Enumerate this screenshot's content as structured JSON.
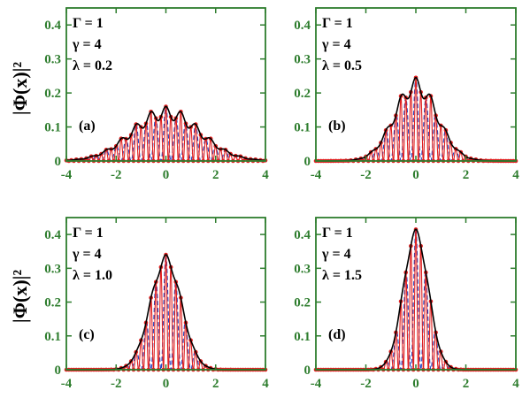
{
  "figure": {
    "ylabel": "|Φ(x)|²",
    "frame_color": "#2e7d2e",
    "colors": {
      "envelope": "#000000",
      "dashed": "#1f3fbf",
      "dots": "#e02020"
    }
  },
  "chart_data": [
    {
      "type": "line",
      "panel_label": "(a)",
      "annotations": [
        "Γ = 1",
        "γ  = 4",
        "λ  = 0.2"
      ],
      "xlim": [
        -4,
        4
      ],
      "ylim": [
        0,
        0.45
      ],
      "xticks": [
        -4,
        -2,
        0,
        2,
        4
      ],
      "yticks": [
        0,
        0.1,
        0.2,
        0.3,
        0.4
      ],
      "peak": 0.16,
      "sigma": 1.35,
      "ripple": 0.12,
      "dot_period": 0.2,
      "dashed_period": 0.4
    },
    {
      "type": "line",
      "panel_label": "(b)",
      "annotations": [
        "Γ = 1",
        "γ  = 4",
        "λ  = 0.5"
      ],
      "xlim": [
        -4,
        4
      ],
      "ylim": [
        0,
        0.45
      ],
      "xticks": [
        -4,
        -2,
        0,
        2,
        4
      ],
      "yticks": [
        0,
        0.1,
        0.2,
        0.3,
        0.4
      ],
      "peak": 0.245,
      "sigma": 0.85,
      "ripple": 0.1,
      "dot_period": 0.2,
      "dashed_period": 0.4
    },
    {
      "type": "line",
      "panel_label": "(c)",
      "annotations": [
        "Γ = 1",
        "γ  = 4",
        "λ  = 1.0"
      ],
      "xlim": [
        -4,
        4
      ],
      "ylim": [
        0,
        0.45
      ],
      "xticks": [
        -4,
        -2,
        0,
        2,
        4
      ],
      "yticks": [
        0,
        0.1,
        0.2,
        0.3,
        0.4
      ],
      "peak": 0.34,
      "sigma": 0.62,
      "ripple": 0.04,
      "dot_period": 0.2,
      "dashed_period": 0.4
    },
    {
      "type": "line",
      "panel_label": "(d)",
      "annotations": [
        "Γ = 1",
        "γ  = 4",
        "λ  = 1.5"
      ],
      "xlim": [
        -4,
        4
      ],
      "ylim": [
        0,
        0.45
      ],
      "xticks": [
        -4,
        -2,
        0,
        2,
        4
      ],
      "yticks": [
        0,
        0.1,
        0.2,
        0.3,
        0.4
      ],
      "peak": 0.415,
      "sigma": 0.5,
      "ripple": 0.03,
      "dot_period": 0.2,
      "dashed_period": 0.4
    }
  ]
}
